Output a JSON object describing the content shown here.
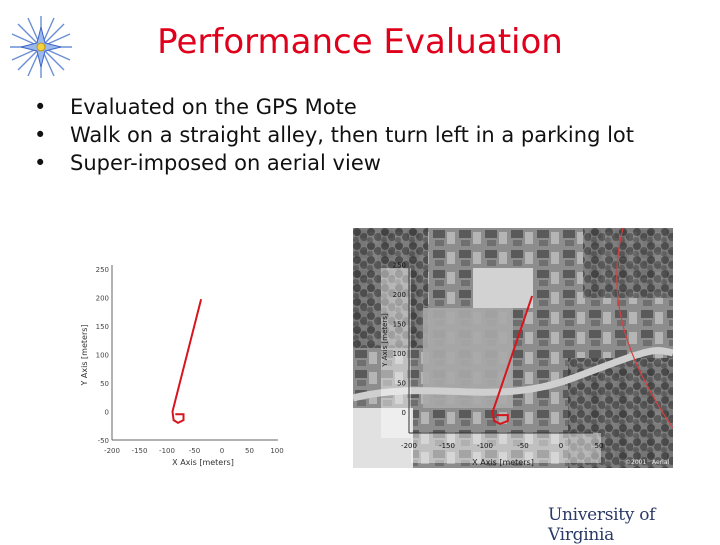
{
  "slide": {
    "title": "Performance Evaluation",
    "bullets": [
      "Evaluated on the GPS Mote",
      "Walk on a straight alley, then turn left in a parking lot",
      "Super-imposed on aerial view"
    ],
    "logo_text": "University of Virginia",
    "colors": {
      "title": "#e0001b",
      "track": "#d8141c",
      "logo": "#2b3a67"
    },
    "icons": {
      "decoration": "compass-star-icon"
    }
  },
  "chart_data": [
    {
      "type": "line",
      "xlabel": "X Axis [meters]",
      "ylabel": "Y Axis [meters]",
      "xlim": [
        -200,
        100
      ],
      "ylim": [
        -50,
        250
      ],
      "x_ticks": [
        -200,
        -150,
        -100,
        -50,
        0,
        50,
        100
      ],
      "y_ticks": [
        -50,
        0,
        50,
        100,
        150,
        200,
        250
      ],
      "series": [
        {
          "x": [
            -38,
            -90,
            -88,
            -80,
            -70,
            -70,
            -85
          ],
          "y": [
            197,
            0,
            -15,
            -20,
            -15,
            -5,
            -5
          ]
        }
      ]
    },
    {
      "type": "line",
      "xlabel": "X Axis [meters]",
      "ylabel": "Y Axis [meters]",
      "x_ticks": [
        -200,
        -150,
        -100,
        -50,
        0,
        50
      ],
      "y_ticks": [
        0,
        50,
        100,
        150,
        200,
        250
      ],
      "watermark": "©2001 · Aerial",
      "series": [
        {
          "x": [
            -38,
            -90,
            -88,
            -80,
            -70,
            -70,
            -85
          ],
          "y": [
            197,
            0,
            -15,
            -20,
            -15,
            -5,
            -5
          ]
        }
      ]
    }
  ]
}
